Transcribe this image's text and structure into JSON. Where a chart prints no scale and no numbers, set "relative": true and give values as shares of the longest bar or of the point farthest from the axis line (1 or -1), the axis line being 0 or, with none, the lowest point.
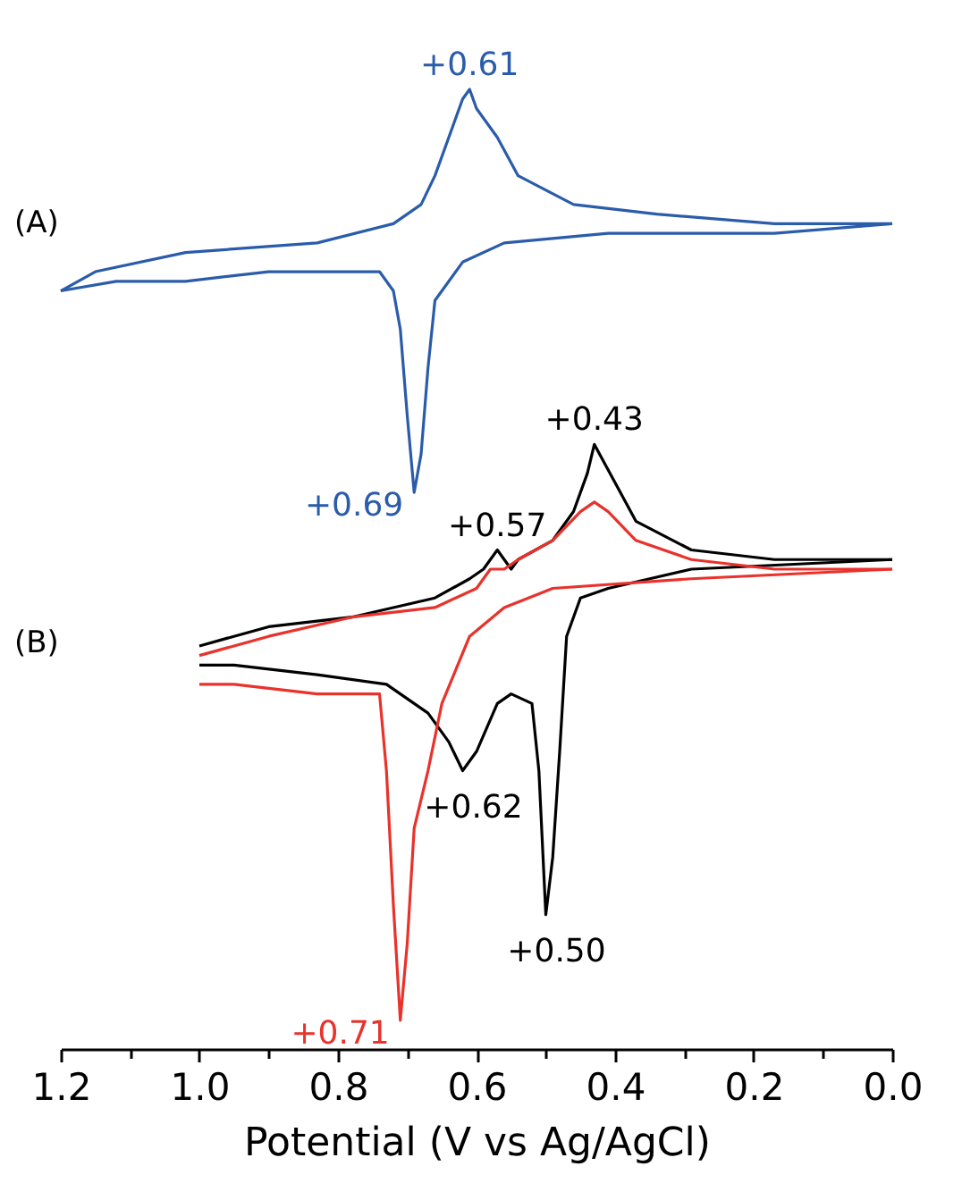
{
  "chart_data": {
    "type": "line",
    "relative": true,
    "xlabel": "Potential (V vs Ag/AgCl)",
    "xlim": [
      1.2,
      0.0
    ],
    "xticks": [
      {
        "value": 1.2,
        "label": "1.2"
      },
      {
        "value": 1.1,
        "label": null
      },
      {
        "value": 1.0,
        "label": "1.0"
      },
      {
        "value": 0.9,
        "label": null
      },
      {
        "value": 0.8,
        "label": "0.8"
      },
      {
        "value": 0.7,
        "label": null
      },
      {
        "value": 0.6,
        "label": "0.6"
      },
      {
        "value": 0.5,
        "label": null
      },
      {
        "value": 0.4,
        "label": "0.4"
      },
      {
        "value": 0.3,
        "label": null
      },
      {
        "value": 0.2,
        "label": "0.2"
      },
      {
        "value": 0.1,
        "label": null
      },
      {
        "value": 0.0,
        "label": "0.0"
      }
    ],
    "tick_labels": "x",
    "grid": false,
    "legend": false,
    "marker": "none",
    "line_style": "solid",
    "series": [
      {
        "color": "#2a5caa",
        "x": [
          0.0,
          0.17,
          0.34,
          0.46,
          0.54,
          0.57,
          0.6,
          0.61,
          0.62,
          0.64,
          0.66,
          0.68,
          0.72,
          0.83,
          1.02,
          1.15,
          1.2
        ],
        "values": [
          0.86,
          0.86,
          0.87,
          0.88,
          0.91,
          0.95,
          0.98,
          1.0,
          0.99,
          0.95,
          0.91,
          0.88,
          0.86,
          0.84,
          0.83,
          0.81,
          0.79
        ]
      },
      {
        "color": "#2a5caa",
        "x": [
          1.2,
          1.12,
          1.02,
          0.9,
          0.78,
          0.74,
          0.72,
          0.71,
          0.7,
          0.69,
          0.68,
          0.67,
          0.66,
          0.62,
          0.56,
          0.41,
          0.17,
          0.0
        ],
        "values": [
          0.79,
          0.8,
          0.8,
          0.81,
          0.81,
          0.81,
          0.79,
          0.75,
          0.66,
          0.58,
          0.62,
          0.71,
          0.78,
          0.82,
          0.84,
          0.85,
          0.85,
          0.86
        ]
      },
      {
        "color": "#000000",
        "x": [
          0.0,
          0.17,
          0.29,
          0.37,
          0.4,
          0.43,
          0.44,
          0.46,
          0.49,
          0.54,
          0.55,
          0.57,
          0.59,
          0.61,
          0.66,
          0.78,
          0.9,
          1.0
        ],
        "values": [
          0.51,
          0.51,
          0.52,
          0.55,
          0.59,
          0.63,
          0.6,
          0.56,
          0.53,
          0.51,
          0.5,
          0.52,
          0.5,
          0.49,
          0.47,
          0.45,
          0.44,
          0.42
        ]
      },
      {
        "color": "#000000",
        "x": [
          1.0,
          0.95,
          0.83,
          0.73,
          0.67,
          0.64,
          0.62,
          0.6,
          0.57,
          0.55,
          0.52,
          0.51,
          0.5,
          0.49,
          0.48,
          0.47,
          0.45,
          0.41,
          0.29,
          0.0
        ],
        "values": [
          0.4,
          0.4,
          0.39,
          0.38,
          0.35,
          0.32,
          0.29,
          0.31,
          0.36,
          0.37,
          0.36,
          0.29,
          0.14,
          0.2,
          0.31,
          0.43,
          0.47,
          0.48,
          0.5,
          0.51
        ]
      },
      {
        "color": "#e8322b",
        "x": [
          0.0,
          0.17,
          0.29,
          0.37,
          0.41,
          0.43,
          0.45,
          0.49,
          0.54,
          0.56,
          0.58,
          0.6,
          0.66,
          0.78,
          0.9,
          1.0
        ],
        "values": [
          0.5,
          0.5,
          0.51,
          0.53,
          0.56,
          0.57,
          0.56,
          0.53,
          0.51,
          0.5,
          0.5,
          0.48,
          0.46,
          0.45,
          0.43,
          0.41
        ]
      },
      {
        "color": "#e8322b",
        "x": [
          1.0,
          0.95,
          0.83,
          0.74,
          0.73,
          0.72,
          0.71,
          0.7,
          0.69,
          0.67,
          0.65,
          0.61,
          0.56,
          0.49,
          0.29,
          0.0
        ],
        "values": [
          0.38,
          0.38,
          0.37,
          0.37,
          0.29,
          0.15,
          0.03,
          0.11,
          0.23,
          0.29,
          0.36,
          0.43,
          0.46,
          0.48,
          0.49,
          0.5
        ]
      }
    ],
    "annotations": [
      "(A)",
      "(B)",
      {
        "text": "+0.61",
        "x": 0.61,
        "y": 1.0
      },
      {
        "text": "+0.69",
        "x": 0.69,
        "y": 0.58
      },
      {
        "text": "+0.43",
        "x": 0.43,
        "y": 0.63
      },
      {
        "text": "+0.57",
        "x": 0.57,
        "y": 0.52
      },
      {
        "text": "+0.62",
        "x": 0.62,
        "y": 0.29
      },
      {
        "text": "+0.50",
        "x": 0.5,
        "y": 0.14
      },
      {
        "text": "+0.71",
        "x": 0.71,
        "y": 0.03
      }
    ]
  }
}
